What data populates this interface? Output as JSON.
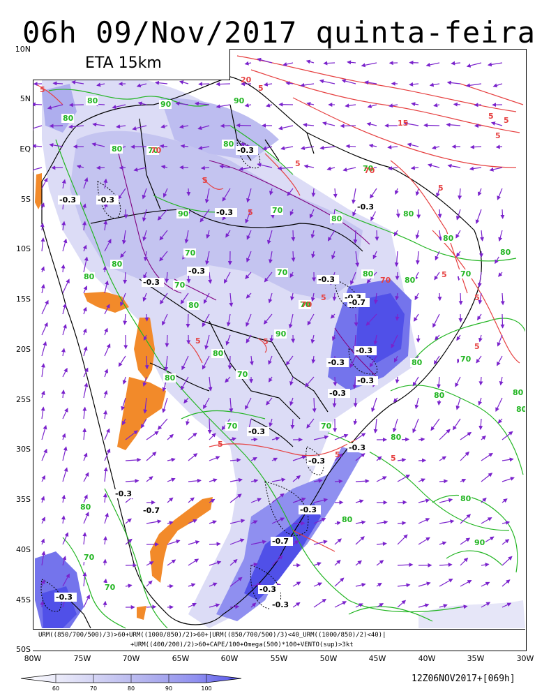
{
  "header": {
    "title": "06h 09/Nov/2017 quinta-feira"
  },
  "model_label": "ETA 15km",
  "lat_labels": [
    "10N",
    "5N",
    "EQ",
    "5S",
    "10S",
    "15S",
    "20S",
    "25S",
    "30S",
    "35S",
    "40S",
    "45S",
    "50S"
  ],
  "lon_labels": [
    "80W",
    "75W",
    "70W",
    "65W",
    "60W",
    "55W",
    "50W",
    "45W",
    "40W",
    "35W",
    "30W"
  ],
  "formula": {
    "line1": "URM((850/700/500)/3)>60+URM((1000/850)/2)>60+|URM((850/700/500)/3)<40_URM((1000/850)/2)<40)|",
    "line2": "+URM((400/200)/2)>60+CAPE/100+Omega(500)*100+VENTO(sup)>3kt"
  },
  "legend": {
    "ticks": [
      "60",
      "70",
      "80",
      "90",
      "100"
    ],
    "colors": [
      "#e6e6f8",
      "#cacaf2",
      "#aeaeee",
      "#8f8ff0",
      "#5050e8"
    ]
  },
  "run_stamp": "12Z06NOV2017+[069h]",
  "contour_labels": {
    "omega": [
      "-0.3",
      "-0.3",
      "-0.3",
      "-0.3",
      "-0.3",
      "-0.3",
      "-0.3",
      "-0.3",
      "-0.3",
      "-0.7",
      "-0.3",
      "-0.3",
      "-0.3",
      "-0.3",
      "-0.3",
      "-0.3",
      "-0.3",
      "-0.3",
      "-0.7",
      "-0.3",
      "-0.7",
      "-0.3",
      "-0.3",
      "-0.3"
    ],
    "rh": [
      "80",
      "90",
      "90",
      "80",
      "80",
      "70",
      "90",
      "80",
      "70",
      "80",
      "70",
      "80",
      "80",
      "80",
      "70",
      "80",
      "80",
      "70",
      "70",
      "80",
      "80",
      "70",
      "70",
      "80",
      "90",
      "80",
      "80",
      "70",
      "80",
      "70",
      "80",
      "80",
      "80",
      "70",
      "70",
      "80",
      "80",
      "90",
      "80",
      "70",
      "70",
      "80"
    ],
    "cape": [
      "5",
      "5",
      "15",
      "5",
      "70",
      "5",
      "5",
      "70",
      "5",
      "5",
      "5",
      "70",
      "70",
      "5",
      "5",
      "5",
      "5",
      "20",
      "5",
      "5",
      "5",
      "5",
      "5",
      "5"
    ]
  },
  "colors": {
    "rh": "#22b522",
    "cape": "#e64040",
    "vectors": "#7a22cc",
    "vertical_motion": "#800080",
    "dry": "#f28a2a",
    "land": "#000000"
  }
}
